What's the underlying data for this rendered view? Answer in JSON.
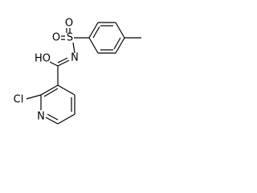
{
  "atoms": [
    {
      "label": "O"
    },
    {
      "label": "O"
    },
    {
      "label": "S"
    },
    {
      "label": "HO"
    },
    {
      "label": "N"
    },
    {
      "label": "Cl"
    },
    {
      "label": "N"
    }
  ]
}
